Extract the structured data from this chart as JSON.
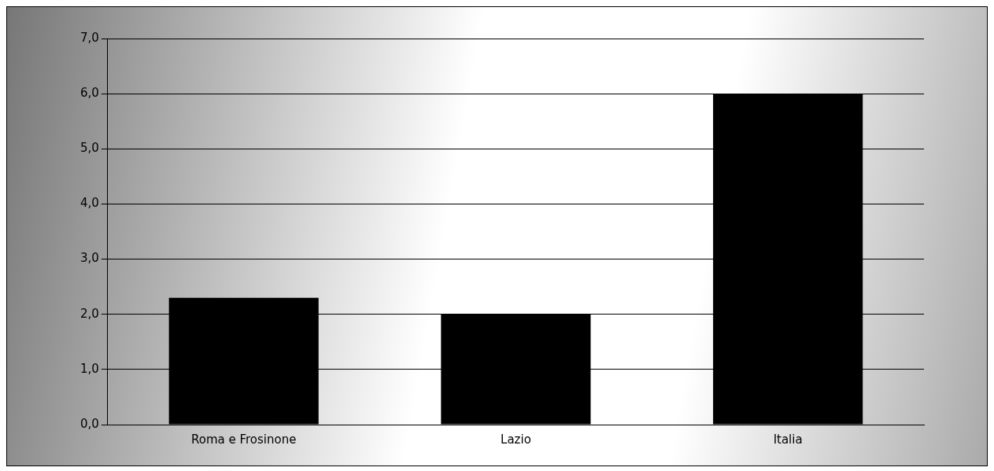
{
  "chart_data": {
    "type": "bar",
    "categories": [
      "Roma e Frosinone",
      "Lazio",
      "Italia"
    ],
    "values": [
      2.3,
      2.0,
      6.0
    ],
    "color": "#000000",
    "ylim": [
      0,
      7
    ],
    "yticks": [
      {
        "value": 0,
        "label": "0,0"
      },
      {
        "value": 1,
        "label": "1,0"
      },
      {
        "value": 2,
        "label": "2,0"
      },
      {
        "value": 3,
        "label": "3,0"
      },
      {
        "value": 4,
        "label": "4,0"
      },
      {
        "value": 5,
        "label": "5,0"
      },
      {
        "value": 6,
        "label": "6,0"
      },
      {
        "value": 7,
        "label": "7,0"
      }
    ],
    "grid": "y",
    "legend": false
  }
}
